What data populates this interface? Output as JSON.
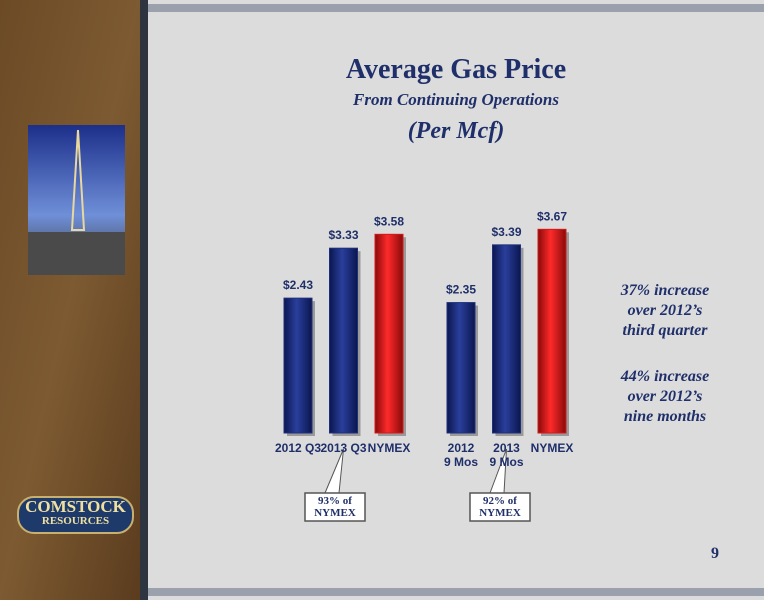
{
  "slide": {
    "title": "Average Gas Price",
    "subtitle": "From Continuing Operations",
    "unit": "(Per Mcf)",
    "notes": [
      "37% increase\nover 2012’s\nthird quarter",
      "44% increase\nover 2012’s\nnine months"
    ],
    "logo": [
      "COMSTOCK",
      "RESOURCES"
    ],
    "page_number": "9"
  },
  "chart_data": [
    {
      "type": "bar",
      "categories": [
        "2012 Q3",
        "2013 Q3",
        "NYMEX"
      ],
      "values": [
        2.43,
        3.33,
        3.58
      ],
      "value_labels": [
        "$2.43",
        "$3.33",
        "$3.58"
      ],
      "colors": [
        "#1f2f7a",
        "#1f2f7a",
        "#d11a1a"
      ],
      "ylim": [
        0,
        4
      ],
      "annotation": "93% of\nNYMEX"
    },
    {
      "type": "bar",
      "categories": [
        "2012\n9 Mos",
        "2013\n9 Mos",
        "NYMEX"
      ],
      "values": [
        2.35,
        3.39,
        3.67
      ],
      "value_labels": [
        "$2.35",
        "$3.39",
        "$3.67"
      ],
      "colors": [
        "#1f2f7a",
        "#1f2f7a",
        "#d11a1a"
      ],
      "ylim": [
        0,
        4
      ],
      "annotation": "92% of\nNYMEX"
    }
  ]
}
